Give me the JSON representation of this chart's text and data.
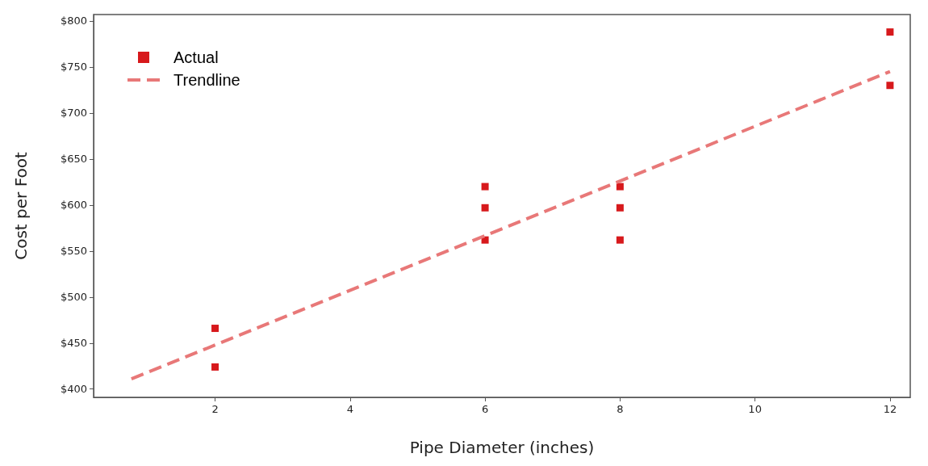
{
  "chart_data": {
    "type": "scatter",
    "xlabel": "Pipe Diameter (inches)",
    "ylabel": "Cost per Foot",
    "xlim": [
      0.2,
      12.3
    ],
    "xticks": [
      2,
      4,
      6,
      8,
      10,
      12
    ],
    "ylim": [
      391,
      807
    ],
    "yticks": [
      {
        "value": 400,
        "label": "$400"
      },
      {
        "value": 450,
        "label": "$450"
      },
      {
        "value": 500,
        "label": "$500"
      },
      {
        "value": 550,
        "label": "$550"
      },
      {
        "value": 600,
        "label": "$600"
      },
      {
        "value": 650,
        "label": "$650"
      },
      {
        "value": 700,
        "label": "$700"
      },
      {
        "value": 750,
        "label": "$750"
      },
      {
        "value": 800,
        "label": "$800"
      }
    ],
    "grid": false,
    "legend": "top left",
    "marker": "square",
    "series": [
      {
        "name": "Actual",
        "color": "#d7191c",
        "x": [
          2,
          2,
          6,
          6,
          6,
          8,
          8,
          8,
          12,
          12
        ],
        "values": [
          466,
          424,
          620,
          597,
          562,
          620,
          597,
          562,
          788,
          730
        ]
      },
      {
        "name": "Trendline",
        "type": "line",
        "color": "#e87878",
        "line_style": "dashed",
        "marker": "none",
        "x": [
          0.76,
          12
        ],
        "values": [
          411,
          745
        ]
      }
    ]
  }
}
